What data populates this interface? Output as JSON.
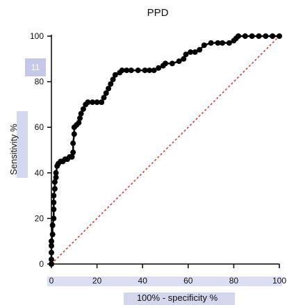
{
  "chart_data": {
    "type": "line",
    "title": "PPD",
    "xlabel": "100% - specificity %",
    "ylabel": "Sensitivity %",
    "xlim": [
      0,
      100
    ],
    "ylim": [
      0,
      100
    ],
    "x_ticks": [
      0,
      20,
      40,
      60,
      80,
      100
    ],
    "y_ticks": [
      0,
      20,
      40,
      60,
      80,
      100
    ],
    "grid": false,
    "badge_label": "11",
    "series": [
      {
        "color": "#000000",
        "marker": "circle",
        "points": [
          [
            0,
            0
          ],
          [
            0,
            2
          ],
          [
            0,
            5
          ],
          [
            0,
            8
          ],
          [
            0,
            10
          ],
          [
            0.5,
            13
          ],
          [
            0.5,
            17
          ],
          [
            1,
            20
          ],
          [
            1,
            24
          ],
          [
            1,
            27
          ],
          [
            1,
            30
          ],
          [
            1.5,
            33
          ],
          [
            1.5,
            36
          ],
          [
            2,
            38
          ],
          [
            2,
            40
          ],
          [
            2.5,
            43
          ],
          [
            3,
            44
          ],
          [
            4,
            45
          ],
          [
            5,
            45
          ],
          [
            6,
            46
          ],
          [
            7,
            46
          ],
          [
            8,
            47
          ],
          [
            9,
            47
          ],
          [
            9.5,
            49
          ],
          [
            9.5,
            53
          ],
          [
            10,
            57
          ],
          [
            10,
            60
          ],
          [
            11,
            61
          ],
          [
            12,
            62
          ],
          [
            12.5,
            64
          ],
          [
            13,
            66
          ],
          [
            14,
            68
          ],
          [
            15,
            70
          ],
          [
            16,
            71
          ],
          [
            18,
            71
          ],
          [
            20,
            71
          ],
          [
            22,
            71
          ],
          [
            23,
            73
          ],
          [
            24,
            75
          ],
          [
            25,
            77
          ],
          [
            26,
            79
          ],
          [
            27,
            81
          ],
          [
            28,
            83
          ],
          [
            30,
            84
          ],
          [
            31,
            85
          ],
          [
            33,
            85
          ],
          [
            35,
            85
          ],
          [
            38,
            85
          ],
          [
            41,
            85
          ],
          [
            43,
            85
          ],
          [
            45,
            85
          ],
          [
            47,
            86
          ],
          [
            49,
            87
          ],
          [
            50,
            88
          ],
          [
            53,
            88
          ],
          [
            56,
            89
          ],
          [
            58,
            90
          ],
          [
            59,
            92
          ],
          [
            61,
            93
          ],
          [
            63,
            93
          ],
          [
            65,
            94
          ],
          [
            67,
            96
          ],
          [
            70,
            97
          ],
          [
            73,
            97
          ],
          [
            75,
            97
          ],
          [
            78,
            97
          ],
          [
            80,
            98
          ],
          [
            81,
            99
          ],
          [
            82,
            100
          ],
          [
            85,
            100
          ],
          [
            88,
            100
          ],
          [
            91,
            100
          ],
          [
            94,
            100
          ],
          [
            97,
            100
          ],
          [
            100,
            100
          ]
        ]
      },
      {
        "color": "#cc2222",
        "style": "dotted",
        "points": [
          [
            0,
            0
          ],
          [
            100,
            100
          ]
        ]
      }
    ]
  }
}
